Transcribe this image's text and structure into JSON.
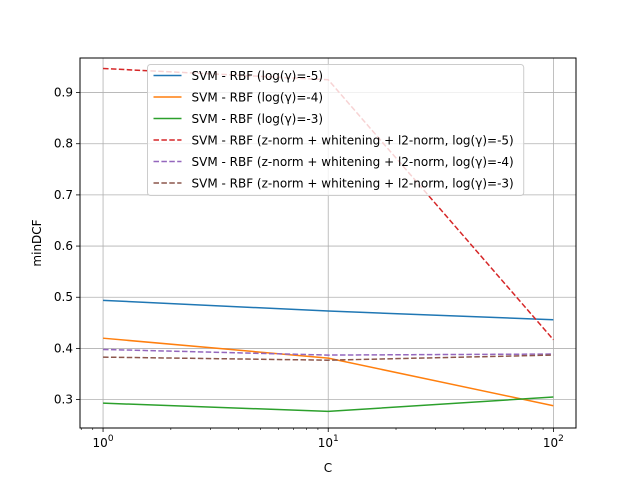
{
  "chart_data": {
    "type": "line",
    "x": [
      1,
      10,
      100
    ],
    "x_tick_labels": [
      {
        "base": "10",
        "exp": "0"
      },
      {
        "base": "10",
        "exp": "1"
      },
      {
        "base": "10",
        "exp": "2"
      }
    ],
    "y_ticks": [
      "0.3",
      "0.4",
      "0.5",
      "0.6",
      "0.7",
      "0.8",
      "0.9"
    ],
    "xlabel": "C",
    "ylabel": "minDCF",
    "xscale": "log",
    "xlim": [
      0.79,
      126.0
    ],
    "ylim": [
      0.2445,
      0.9675
    ],
    "grid": true,
    "legend_position": "top-right",
    "series": [
      {
        "name": "SVM - RBF (log(γ)=-5)",
        "values": [
          0.494,
          0.473,
          0.456
        ],
        "color": "#1f77b4",
        "dashed": false
      },
      {
        "name": "SVM - RBF (log(γ)=-4)",
        "values": [
          0.42,
          0.381,
          0.288
        ],
        "color": "#ff7f0e",
        "dashed": false
      },
      {
        "name": "SVM - RBF (log(γ)=-3)",
        "values": [
          0.293,
          0.277,
          0.305
        ],
        "color": "#2ca02c",
        "dashed": false
      },
      {
        "name": "SVM - RBF (z-norm + whitening + l2-norm, log(γ)=-5)",
        "values": [
          0.947,
          0.925,
          0.417
        ],
        "color": "#d62728",
        "dashed": true
      },
      {
        "name": "SVM - RBF (z-norm + whitening + l2-norm, log(γ)=-4)",
        "values": [
          0.398,
          0.387,
          0.389
        ],
        "color": "#9467bd",
        "dashed": true
      },
      {
        "name": "SVM - RBF (z-norm + whitening + l2-norm, log(γ)=-3)",
        "values": [
          0.383,
          0.377,
          0.387
        ],
        "color": "#8c564b",
        "dashed": true
      }
    ]
  }
}
